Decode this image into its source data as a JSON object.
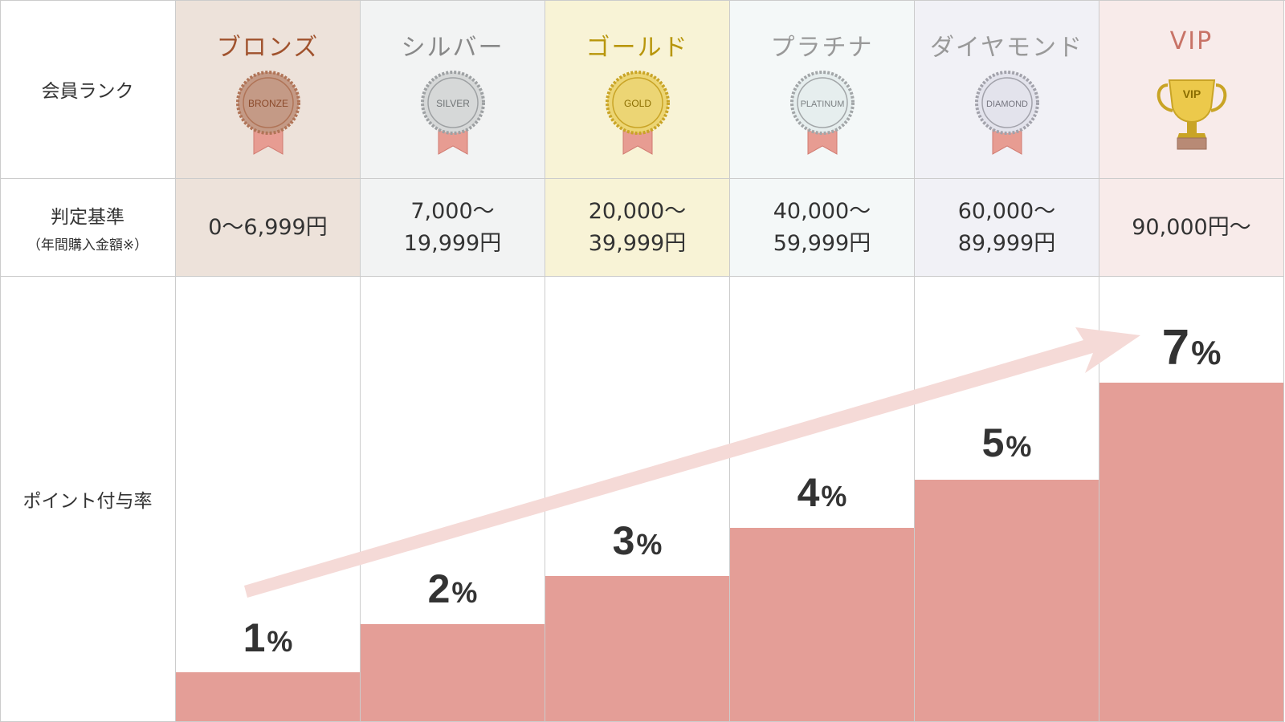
{
  "row_labels": {
    "rank": "会員ランク",
    "criteria_main": "判定基準",
    "criteria_sub": "（年間購入金額※）",
    "rate": "ポイント付与率"
  },
  "ranks": [
    {
      "name": "ブロンズ",
      "badge": "BRONZE",
      "icon": "bronze-medal-icon",
      "criteria": "0〜6,999円",
      "rate_value": "1",
      "rate": 1,
      "name_color": "#a0522d",
      "bg": "#ede2da",
      "medal_fill": "#c49a86",
      "medal_rim": "#b07457",
      "badge_text_color": "#8b4a2b"
    },
    {
      "name": "シルバー",
      "badge": "SILVER",
      "icon": "silver-medal-icon",
      "criteria": "7,000〜\n19,999円",
      "rate_value": "2",
      "rate": 2,
      "name_color": "#888888",
      "bg": "#f2f3f3",
      "medal_fill": "#d6d8d8",
      "medal_rim": "#9ea1a3",
      "badge_text_color": "#6f7375"
    },
    {
      "name": "ゴールド",
      "badge": "GOLD",
      "icon": "gold-medal-icon",
      "criteria": "20,000〜\n39,999円",
      "rate_value": "3",
      "rate": 3,
      "name_color": "#b8960c",
      "bg": "#f8f3d6",
      "medal_fill": "#ecd574",
      "medal_rim": "#c9a426",
      "badge_text_color": "#8a6d00"
    },
    {
      "name": "プラチナ",
      "badge": "PLATINUM",
      "icon": "platinum-medal-icon",
      "criteria": "40,000〜\n59,999円",
      "rate_value": "4",
      "rate": 4,
      "name_color": "#999999",
      "bg": "#f4f8f8",
      "medal_fill": "#e6eeee",
      "medal_rim": "#a2a6a8",
      "badge_text_color": "#7c8183"
    },
    {
      "name": "ダイヤモンド",
      "badge": "DIAMOND",
      "icon": "diamond-medal-icon",
      "criteria": "60,000〜\n89,999円",
      "rate_value": "5",
      "rate": 5,
      "name_color": "#999999",
      "bg": "#f1f1f6",
      "medal_fill": "#e3e3ec",
      "medal_rim": "#a2a2ab",
      "badge_text_color": "#75757f"
    },
    {
      "name": "VIP",
      "badge": "VIP",
      "icon": "vip-trophy-icon",
      "criteria": "90,000円〜",
      "rate_value": "7",
      "rate": 7,
      "name_color": "#c87367",
      "bg": "#f8ebea",
      "medal_fill": "#ecc94b",
      "medal_rim": "#c9a426",
      "badge_text_color": "#8a6d00"
    }
  ],
  "percent_sign": "%",
  "colors": {
    "bar": "#e49e97",
    "arrow": "#f5dad7",
    "border": "#cccccc",
    "ribbon": "#e79c92"
  }
}
